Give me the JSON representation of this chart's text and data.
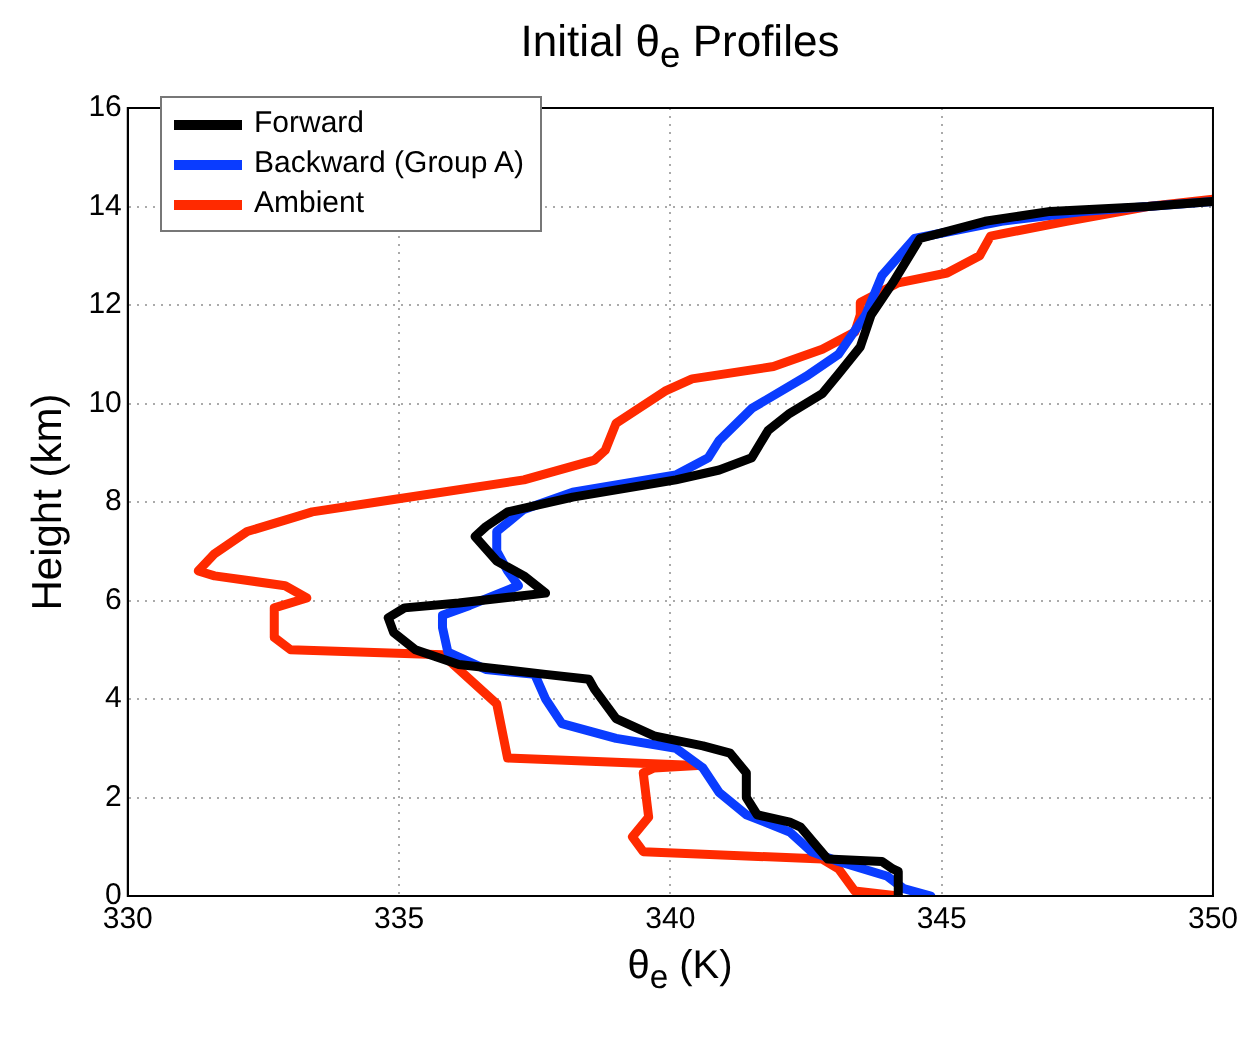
{
  "chart_data": {
    "type": "line",
    "title": "Initial θ$_{e}$ Profiles",
    "xlabel": "θ$_{e}$ (K)",
    "ylabel": "Height (km)",
    "xlim": [
      330,
      350
    ],
    "xticks": [
      330,
      335,
      340,
      345,
      350
    ],
    "ylim": [
      0,
      16
    ],
    "yticks": [
      0,
      2,
      4,
      6,
      8,
      10,
      12,
      14,
      16
    ],
    "grid": true,
    "legend": "top left",
    "marker": "none",
    "line_style": "solid",
    "series": [
      {
        "name": "Forward",
        "color": "#000000",
        "x": [
          344.2,
          344.2,
          344.1,
          343.9,
          342.9,
          342.4,
          342.2,
          341.6,
          341.4,
          341.4,
          341.1,
          340.6,
          339.7,
          339.0,
          338.6,
          338.5,
          337.7,
          336.1,
          335.3,
          334.9,
          334.8,
          335.1,
          336.1,
          337.7,
          337.3,
          336.8,
          336.4,
          336.6,
          337.0,
          338.2,
          340.1,
          340.9,
          341.5,
          341.8,
          342.2,
          342.8,
          343.1,
          343.5,
          343.7,
          344.1,
          344.6,
          345.8,
          347.0,
          348.8,
          350
        ],
        "values": [
          0,
          0.5,
          0.55,
          0.7,
          0.75,
          1.4,
          1.5,
          1.65,
          2.0,
          2.5,
          2.9,
          3.05,
          3.25,
          3.6,
          4.2,
          4.4,
          4.5,
          4.7,
          5.0,
          5.35,
          5.65,
          5.85,
          5.95,
          6.15,
          6.5,
          6.8,
          7.3,
          7.5,
          7.8,
          8.1,
          8.45,
          8.65,
          8.9,
          9.45,
          9.8,
          10.2,
          10.6,
          11.15,
          11.8,
          12.45,
          13.35,
          13.7,
          13.9,
          14.0,
          14.1
        ]
      },
      {
        "name": "Backward (Group A)",
        "color": "#0a3cff",
        "x": [
          344.8,
          344.3,
          344.0,
          343.1,
          342.6,
          342.2,
          341.4,
          340.9,
          340.6,
          340.1,
          339.0,
          338.0,
          337.7,
          337.5,
          336.6,
          335.9,
          335.8,
          335.8,
          336.3,
          337.2,
          337.0,
          336.8,
          336.8,
          337.3,
          338.2,
          340.1,
          340.7,
          340.9,
          341.5,
          342.5,
          343.1,
          343.6,
          343.9,
          344.5,
          346.1,
          347.6,
          350
        ],
        "values": [
          0,
          0.15,
          0.4,
          0.7,
          0.9,
          1.3,
          1.65,
          2.1,
          2.6,
          3.0,
          3.2,
          3.5,
          4.0,
          4.5,
          4.6,
          4.95,
          5.45,
          5.7,
          5.9,
          6.3,
          6.6,
          7.0,
          7.4,
          7.85,
          8.2,
          8.55,
          8.9,
          9.25,
          9.9,
          10.55,
          11.0,
          11.8,
          12.6,
          13.35,
          13.7,
          13.9,
          14.1
        ]
      },
      {
        "name": "Ambient",
        "color": "#ff2a00",
        "x": [
          344.2,
          343.4,
          343.1,
          342.8,
          339.5,
          339.3,
          339.6,
          339.5,
          339.7,
          340.5,
          337.0,
          336.8,
          336.1,
          335.8,
          333.0,
          332.7,
          332.7,
          333.3,
          332.9,
          331.6,
          331.3,
          331.6,
          332.2,
          333.4,
          334.9,
          337.3,
          338.6,
          338.8,
          339.0,
          339.9,
          340.4,
          341.9,
          342.8,
          343.4,
          343.5,
          343.5,
          344.2,
          345.1,
          345.7,
          345.9,
          347.3,
          348.8,
          350
        ],
        "values": [
          0,
          0.1,
          0.55,
          0.75,
          0.9,
          1.2,
          1.6,
          2.5,
          2.6,
          2.65,
          2.8,
          3.9,
          4.6,
          4.9,
          5.0,
          5.25,
          5.85,
          6.05,
          6.3,
          6.5,
          6.6,
          6.95,
          7.4,
          7.8,
          8.05,
          8.45,
          8.85,
          9.05,
          9.6,
          10.25,
          10.5,
          10.75,
          11.1,
          11.45,
          11.8,
          12.05,
          12.45,
          12.65,
          13.0,
          13.4,
          13.7,
          14.0,
          14.15
        ]
      }
    ]
  }
}
